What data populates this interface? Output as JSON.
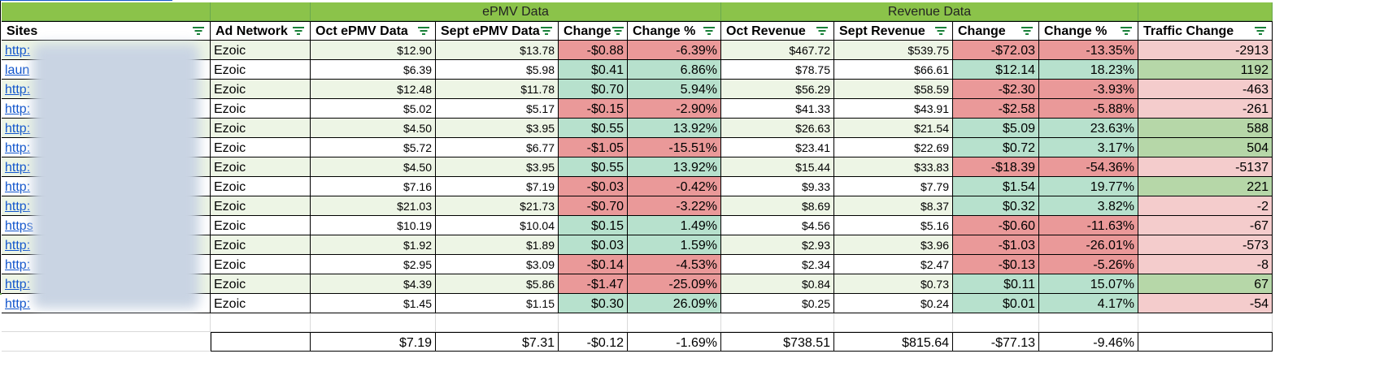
{
  "group_headers": {
    "epmv": "ePMV Data",
    "revenue": "Revenue Data"
  },
  "columns": [
    "Sites",
    "Ad Network",
    "Oct ePMV Data",
    "Sept ePMV Data",
    "Change",
    "Change %",
    "Oct Revenue",
    "Sept Revenue",
    "Change",
    "Change %",
    "Traffic Change"
  ],
  "rows": [
    {
      "site": "http:",
      "network": "Ezoic",
      "oct_epmv": "$12.90",
      "sept_epmv": "$13.78",
      "epmv_change": "-$0.88",
      "epmv_change_pct": "-6.39%",
      "oct_rev": "$467.72",
      "sept_rev": "$539.75",
      "rev_change": "-$72.03",
      "rev_change_pct": "-13.35%",
      "traffic": "-2913"
    },
    {
      "site": "laun",
      "network": "Ezoic",
      "oct_epmv": "$6.39",
      "sept_epmv": "$5.98",
      "epmv_change": "$0.41",
      "epmv_change_pct": "6.86%",
      "oct_rev": "$78.75",
      "sept_rev": "$66.61",
      "rev_change": "$12.14",
      "rev_change_pct": "18.23%",
      "traffic": "1192"
    },
    {
      "site": "http:",
      "network": "Ezoic",
      "oct_epmv": "$12.48",
      "sept_epmv": "$11.78",
      "epmv_change": "$0.70",
      "epmv_change_pct": "5.94%",
      "oct_rev": "$56.29",
      "sept_rev": "$58.59",
      "rev_change": "-$2.30",
      "rev_change_pct": "-3.93%",
      "traffic": "-463"
    },
    {
      "site": "http:",
      "network": "Ezoic",
      "oct_epmv": "$5.02",
      "sept_epmv": "$5.17",
      "epmv_change": "-$0.15",
      "epmv_change_pct": "-2.90%",
      "oct_rev": "$41.33",
      "sept_rev": "$43.91",
      "rev_change": "-$2.58",
      "rev_change_pct": "-5.88%",
      "traffic": "-261"
    },
    {
      "site": "http:",
      "network": "Ezoic",
      "oct_epmv": "$4.50",
      "sept_epmv": "$3.95",
      "epmv_change": "$0.55",
      "epmv_change_pct": "13.92%",
      "oct_rev": "$26.63",
      "sept_rev": "$21.54",
      "rev_change": "$5.09",
      "rev_change_pct": "23.63%",
      "traffic": "588"
    },
    {
      "site": "http:",
      "network": "Ezoic",
      "oct_epmv": "$5.72",
      "sept_epmv": "$6.77",
      "epmv_change": "-$1.05",
      "epmv_change_pct": "-15.51%",
      "oct_rev": "$23.41",
      "sept_rev": "$22.69",
      "rev_change": "$0.72",
      "rev_change_pct": "3.17%",
      "traffic": "504"
    },
    {
      "site": "http:",
      "network": "Ezoic",
      "oct_epmv": "$4.50",
      "sept_epmv": "$3.95",
      "epmv_change": "$0.55",
      "epmv_change_pct": "13.92%",
      "oct_rev": "$15.44",
      "sept_rev": "$33.83",
      "rev_change": "-$18.39",
      "rev_change_pct": "-54.36%",
      "traffic": "-5137"
    },
    {
      "site": "http:",
      "network": "Ezoic",
      "oct_epmv": "$7.16",
      "sept_epmv": "$7.19",
      "epmv_change": "-$0.03",
      "epmv_change_pct": "-0.42%",
      "oct_rev": "$9.33",
      "sept_rev": "$7.79",
      "rev_change": "$1.54",
      "rev_change_pct": "19.77%",
      "traffic": "221"
    },
    {
      "site": "http:",
      "network": "Ezoic",
      "oct_epmv": "$21.03",
      "sept_epmv": "$21.73",
      "epmv_change": "-$0.70",
      "epmv_change_pct": "-3.22%",
      "oct_rev": "$8.69",
      "sept_rev": "$8.37",
      "rev_change": "$0.32",
      "rev_change_pct": "3.82%",
      "traffic": "-2"
    },
    {
      "site": "https",
      "network": "Ezoic",
      "oct_epmv": "$10.19",
      "sept_epmv": "$10.04",
      "epmv_change": "$0.15",
      "epmv_change_pct": "1.49%",
      "oct_rev": "$4.56",
      "sept_rev": "$5.16",
      "rev_change": "-$0.60",
      "rev_change_pct": "-11.63%",
      "traffic": "-67"
    },
    {
      "site": "http:",
      "network": "Ezoic",
      "oct_epmv": "$1.92",
      "sept_epmv": "$1.89",
      "epmv_change": "$0.03",
      "epmv_change_pct": "1.59%",
      "oct_rev": "$2.93",
      "sept_rev": "$3.96",
      "rev_change": "-$1.03",
      "rev_change_pct": "-26.01%",
      "traffic": "-573"
    },
    {
      "site": "http:",
      "network": "Ezoic",
      "oct_epmv": "$2.95",
      "sept_epmv": "$3.09",
      "epmv_change": "-$0.14",
      "epmv_change_pct": "-4.53%",
      "oct_rev": "$2.34",
      "sept_rev": "$2.47",
      "rev_change": "-$0.13",
      "rev_change_pct": "-5.26%",
      "traffic": "-8"
    },
    {
      "site": "http:",
      "network": "Ezoic",
      "oct_epmv": "$4.39",
      "sept_epmv": "$5.86",
      "epmv_change": "-$1.47",
      "epmv_change_pct": "-25.09%",
      "oct_rev": "$0.84",
      "sept_rev": "$0.73",
      "rev_change": "$0.11",
      "rev_change_pct": "15.07%",
      "traffic": "67"
    },
    {
      "site": "http:",
      "network": "Ezoic",
      "oct_epmv": "$1.45",
      "sept_epmv": "$1.15",
      "epmv_change": "$0.30",
      "epmv_change_pct": "26.09%",
      "oct_rev": "$0.25",
      "sept_rev": "$0.24",
      "rev_change": "$0.01",
      "rev_change_pct": "4.17%",
      "traffic": "-54"
    }
  ],
  "totals": {
    "oct_epmv": "$7.19",
    "sept_epmv": "$7.31",
    "epmv_change": "-$0.12",
    "epmv_change_pct": "-1.69%",
    "oct_rev": "$738.51",
    "sept_rev": "$815.64",
    "rev_change": "-$77.13",
    "rev_change_pct": "-9.46%"
  },
  "colors": {
    "header_green": "#8bc34a",
    "band_light": "#edf5e5",
    "band_white": "#ffffff",
    "negative": "#ea9999",
    "positive": "#b7e1cd",
    "traffic_negative": "#f4cccc",
    "traffic_positive": "#b6d7a8",
    "link": "#1155cc",
    "filter_icon": "#188038"
  },
  "icons": {
    "filter": "filter-icon"
  }
}
